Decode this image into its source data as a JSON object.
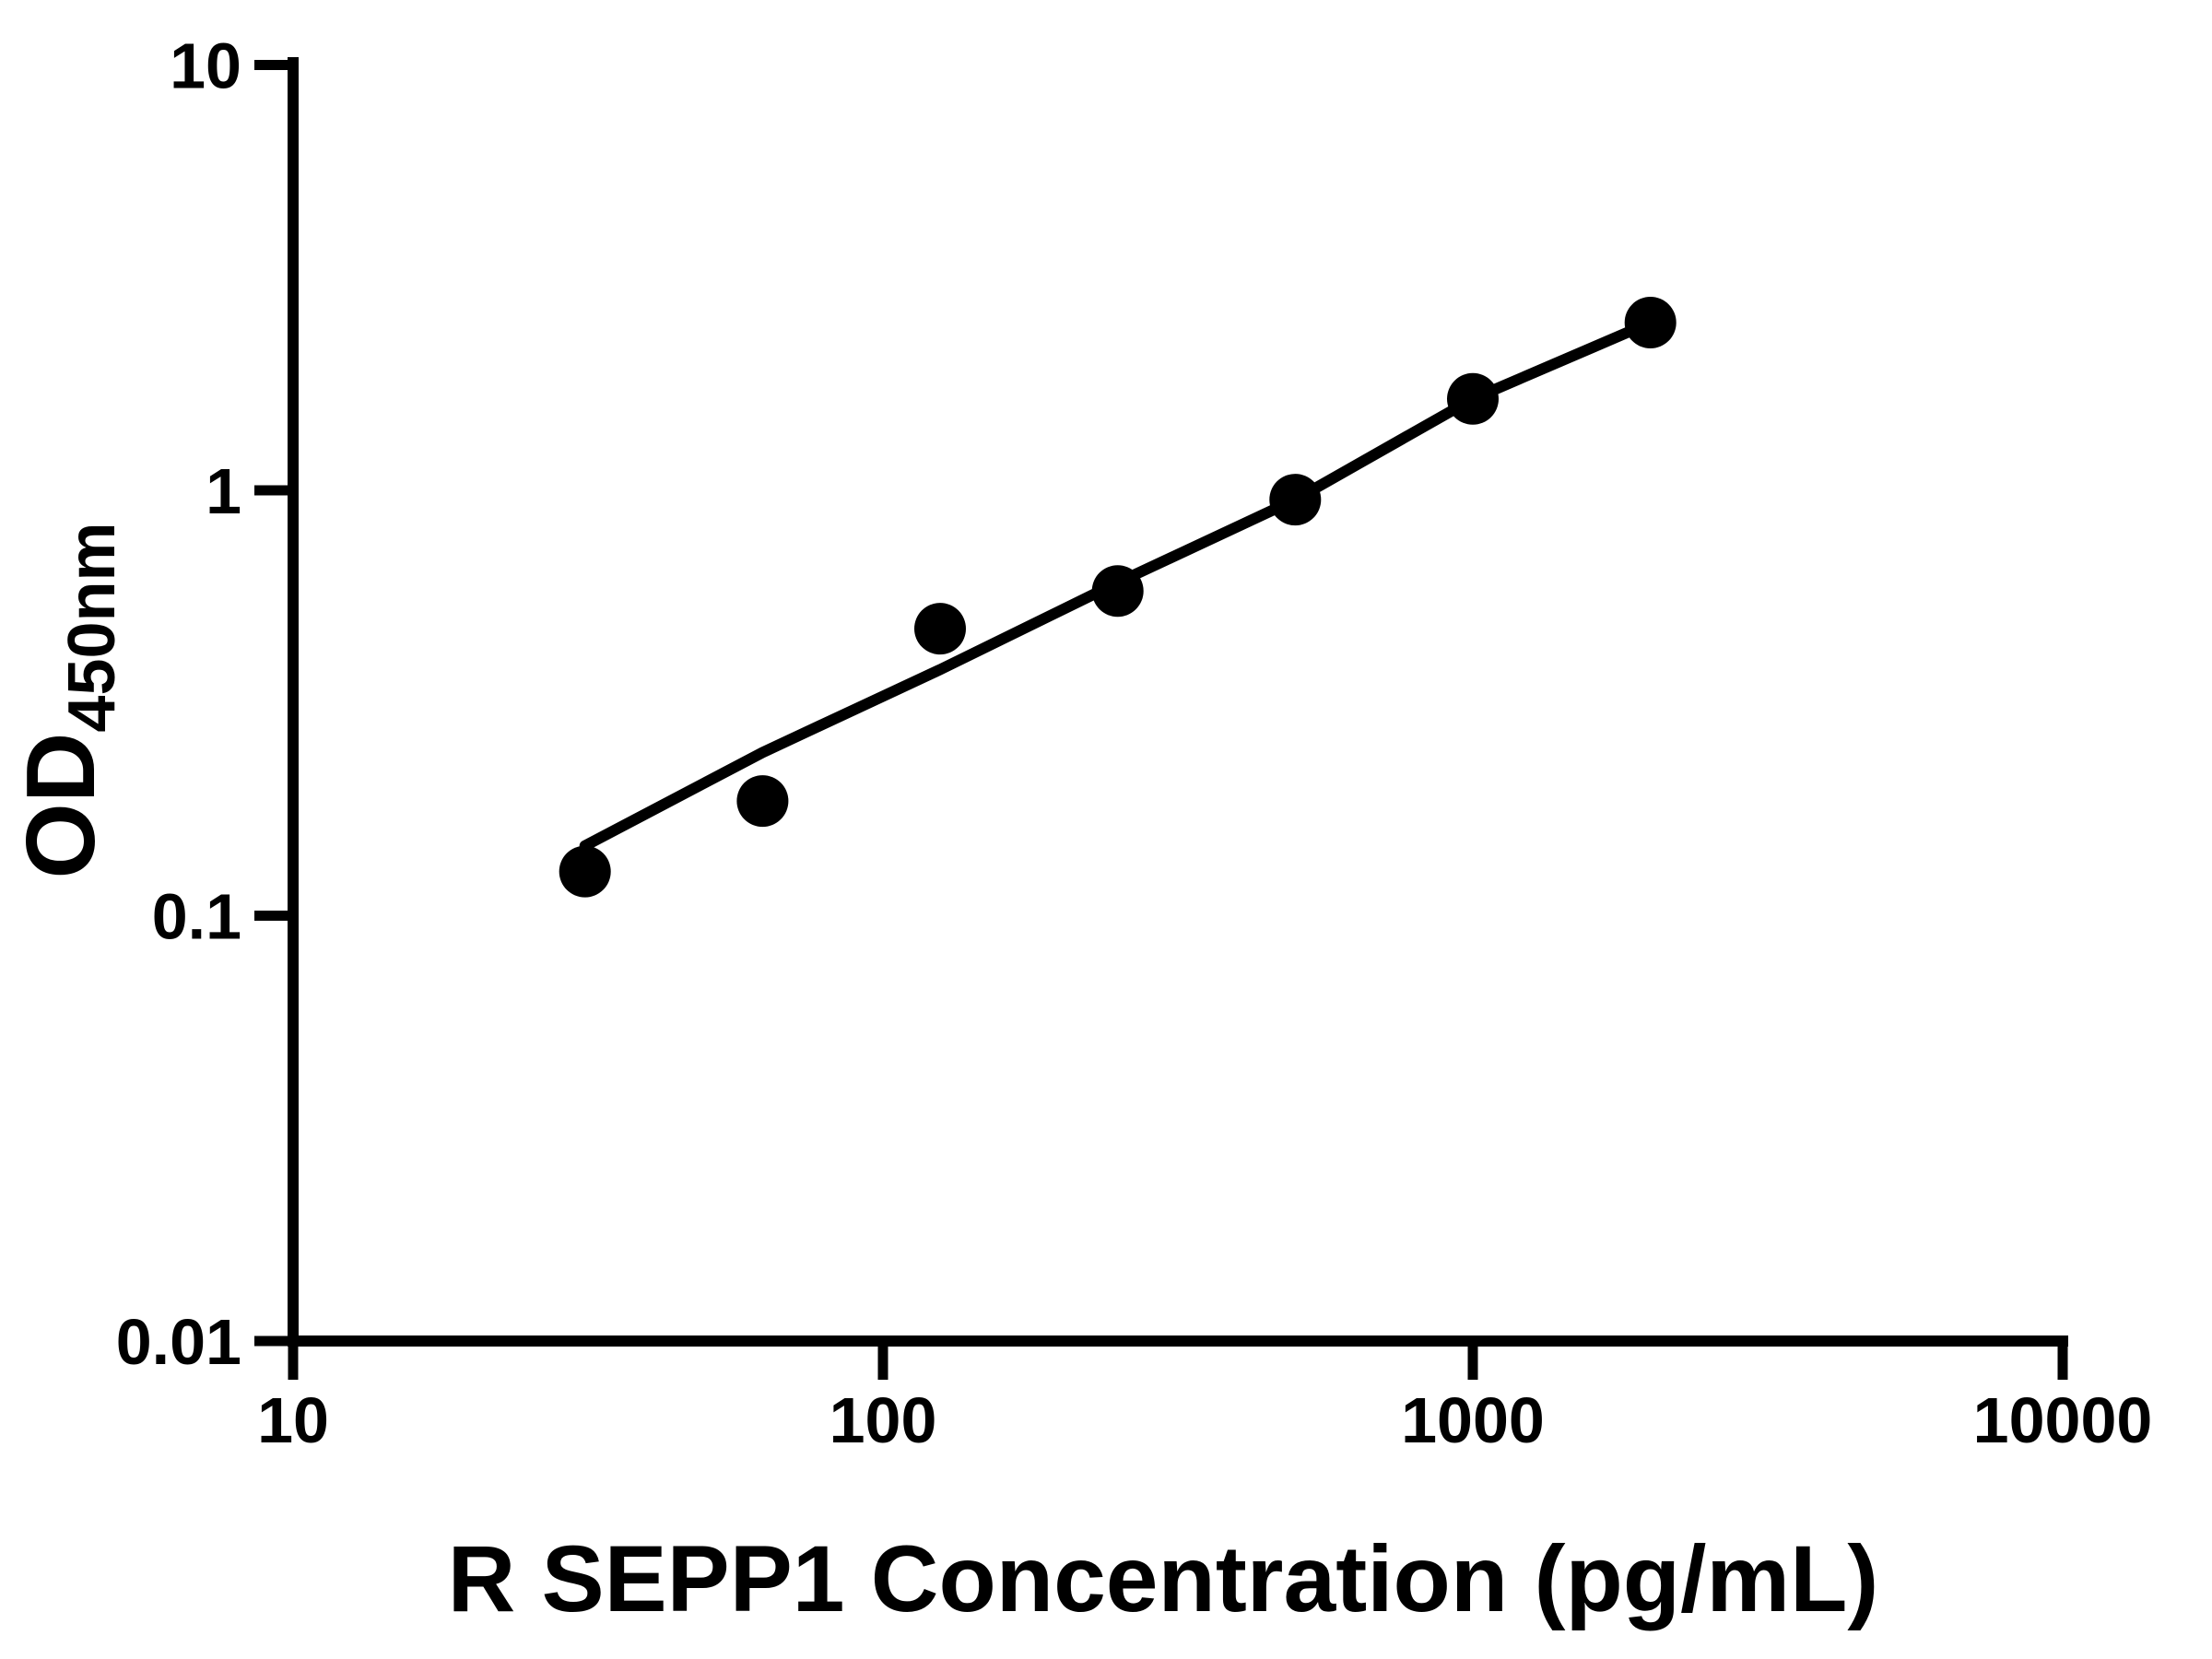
{
  "chart_data": {
    "type": "scatter",
    "title": "",
    "xlabel": "R SEPP1 Concentration (pg/mL)",
    "ylabel_main": "OD",
    "ylabel_sub": "450nm",
    "x_axis": {
      "scale": "log10",
      "range": [
        10,
        10000
      ],
      "ticks": [
        {
          "value": 10,
          "label": "10"
        },
        {
          "value": 100,
          "label": "100"
        },
        {
          "value": 1000,
          "label": "1000"
        },
        {
          "value": 10000,
          "label": "10000"
        }
      ]
    },
    "y_axis": {
      "scale": "log10",
      "range": [
        0.01,
        10
      ],
      "ticks": [
        {
          "value": 10,
          "label": "10"
        },
        {
          "value": 1,
          "label": "1"
        },
        {
          "value": 0.1,
          "label": "0.1"
        },
        {
          "value": 0.01,
          "label": "0.01"
        }
      ]
    },
    "series": [
      {
        "name": "standard-points",
        "marker": "filled-circle",
        "x": [
          31.25,
          62.5,
          125,
          250,
          500,
          1000,
          2000
        ],
        "y": [
          0.127,
          0.186,
          0.473,
          0.58,
          0.951,
          1.64,
          2.48
        ]
      }
    ],
    "fit_line": {
      "name": "standard-curve-fit",
      "x": [
        31.25,
        62.5,
        125,
        250,
        500,
        1000,
        2000
      ],
      "y": [
        0.146,
        0.242,
        0.379,
        0.607,
        0.951,
        1.64,
        2.48
      ]
    },
    "legend": "none",
    "grid": false,
    "colors": {
      "foreground": "#000000",
      "background": "#ffffff"
    }
  }
}
